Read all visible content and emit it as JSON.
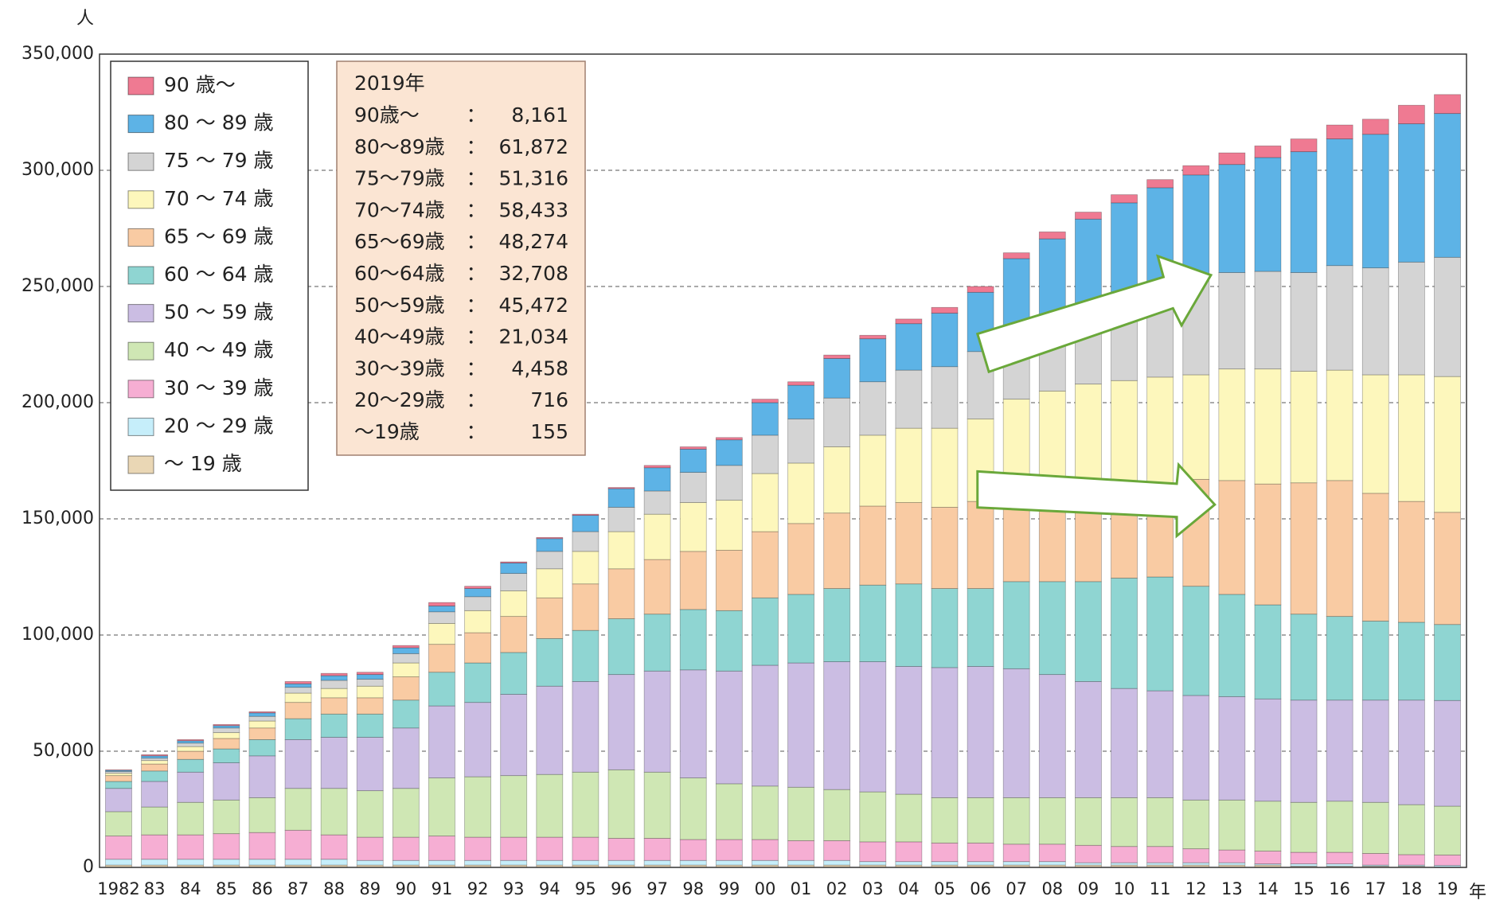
{
  "chart_data": {
    "type": "stacked_bar",
    "y_unit": "人",
    "x_unit": "年",
    "categories": [
      "1982",
      "83",
      "84",
      "85",
      "86",
      "87",
      "88",
      "89",
      "90",
      "91",
      "92",
      "93",
      "94",
      "95",
      "96",
      "97",
      "98",
      "99",
      "00",
      "01",
      "02",
      "03",
      "04",
      "05",
      "06",
      "07",
      "08",
      "09",
      "10",
      "11",
      "12",
      "13",
      "14",
      "15",
      "16",
      "17",
      "18",
      "19"
    ],
    "ylim": [
      0,
      350000
    ],
    "yticks": [
      0,
      {
        "value": 50000,
        "label": "50,000"
      },
      {
        "value": 100000,
        "label": "100,000"
      },
      {
        "value": 150000,
        "label": "150,000"
      },
      {
        "value": 200000,
        "label": "200,000"
      },
      {
        "value": 250000,
        "label": "250,000"
      },
      {
        "value": 300000,
        "label": "300,000"
      },
      {
        "value": 350000,
        "label": "350,000"
      }
    ],
    "grid": true,
    "series": [
      {
        "name": "～ 19 歳",
        "color": "#ead7b5",
        "values": [
          1000,
          1000,
          1000,
          1000,
          1000,
          1000,
          1000,
          1000,
          1000,
          1000,
          1000,
          1000,
          1000,
          1000,
          1000,
          1000,
          1000,
          1000,
          1000,
          1000,
          1000,
          1000,
          1000,
          1000,
          1000,
          1000,
          1000,
          1000,
          1000,
          1000,
          1000,
          1000,
          1000,
          500,
          500,
          500,
          500,
          155
        ]
      },
      {
        "name": "20 ～ 29 歳",
        "color": "#c6eefa",
        "values": [
          2500,
          2500,
          2500,
          2500,
          2500,
          2500,
          2500,
          2000,
          2000,
          2000,
          2000,
          2000,
          2000,
          2000,
          2000,
          2000,
          2000,
          2000,
          2000,
          2000,
          2000,
          1500,
          1500,
          1500,
          1500,
          1500,
          1500,
          1000,
          1000,
          1000,
          1000,
          1000,
          500,
          1000,
          1000,
          500,
          500,
          716
        ]
      },
      {
        "name": "30 ～ 39 歳",
        "color": "#f6aed3",
        "values": [
          10000,
          10500,
          10500,
          11000,
          11500,
          12500,
          10500,
          10000,
          10000,
          10500,
          10000,
          10000,
          10000,
          10000,
          9500,
          9500,
          9000,
          9000,
          9000,
          8500,
          8500,
          8500,
          8500,
          8000,
          8000,
          7500,
          7500,
          7500,
          7000,
          7000,
          6000,
          5500,
          5500,
          5000,
          5000,
          5000,
          4500,
          4458
        ]
      },
      {
        "name": "40 ～ 49 歳",
        "color": "#cfe7b4",
        "values": [
          10500,
          12000,
          14000,
          14500,
          15000,
          18000,
          20000,
          20000,
          21000,
          25000,
          26000,
          26500,
          27000,
          28000,
          29500,
          28500,
          26500,
          24000,
          23000,
          23000,
          22000,
          21500,
          20500,
          19500,
          19500,
          20000,
          20000,
          20500,
          21000,
          21000,
          21000,
          21500,
          21500,
          21500,
          22000,
          22000,
          21500,
          21034
        ]
      },
      {
        "name": "50 ～ 59 歳",
        "color": "#cbbde3",
        "values": [
          10000,
          11000,
          13000,
          16000,
          18000,
          21000,
          22000,
          23000,
          26000,
          31000,
          32000,
          35000,
          38000,
          39000,
          41000,
          43500,
          46500,
          48500,
          52000,
          53500,
          55000,
          56000,
          55000,
          56000,
          56500,
          55500,
          53000,
          50000,
          47000,
          46000,
          45000,
          44500,
          44000,
          44000,
          43500,
          44000,
          45000,
          45472
        ]
      },
      {
        "name": "60 ～ 64 歳",
        "color": "#8fd5d2",
        "values": [
          3000,
          4500,
          5500,
          6000,
          7000,
          9000,
          10000,
          10000,
          12000,
          14500,
          17000,
          18000,
          20500,
          22000,
          24000,
          24500,
          26000,
          26000,
          29000,
          29500,
          31500,
          33000,
          35500,
          34000,
          33500,
          37500,
          40000,
          43000,
          47500,
          49000,
          47000,
          44000,
          40500,
          37000,
          36000,
          34000,
          33500,
          32708
        ]
      },
      {
        "name": "65 ～ 69 歳",
        "color": "#f9cba3",
        "values": [
          2500,
          3000,
          3500,
          4500,
          5000,
          7000,
          7000,
          7000,
          10000,
          12000,
          13000,
          15500,
          17500,
          20000,
          21500,
          23500,
          25000,
          26000,
          28500,
          30500,
          32500,
          34000,
          35000,
          35000,
          37500,
          37000,
          36000,
          35000,
          34500,
          35000,
          46000,
          49000,
          52000,
          56500,
          58500,
          55000,
          52000,
          48274
        ]
      },
      {
        "name": "70 ～ 74 歳",
        "color": "#fdf7bc",
        "values": [
          1000,
          1500,
          2000,
          2500,
          3000,
          4000,
          4000,
          5000,
          6000,
          9000,
          9500,
          11000,
          12500,
          14000,
          16000,
          19500,
          21000,
          21500,
          25000,
          26000,
          28500,
          30500,
          32000,
          34000,
          35500,
          41500,
          46000,
          50000,
          50500,
          51000,
          45000,
          48000,
          49500,
          48000,
          47500,
          51000,
          54500,
          58433
        ]
      },
      {
        "name": "75 ～ 79 歳",
        "color": "#d4d4d4",
        "values": [
          800,
          1000,
          1500,
          2000,
          2000,
          2500,
          3500,
          3000,
          4000,
          5000,
          6000,
          7500,
          7500,
          8500,
          10500,
          10000,
          13000,
          15000,
          16500,
          19000,
          21000,
          23000,
          25000,
          26500,
          29000,
          20500,
          22000,
          24000,
          29500,
          35000,
          43000,
          41500,
          42000,
          42500,
          45000,
          46000,
          48500,
          51316
        ]
      },
      {
        "name": "80 ～ 89 歳",
        "color": "#5db3e6",
        "values": [
          500,
          1000,
          1000,
          1000,
          1500,
          1500,
          2000,
          2000,
          2500,
          2500,
          3500,
          4500,
          5500,
          7000,
          8000,
          10000,
          10000,
          11000,
          14000,
          14500,
          17000,
          18500,
          20000,
          23000,
          25500,
          40000,
          43500,
          47000,
          47000,
          46500,
          43000,
          46500,
          49000,
          52000,
          54500,
          57500,
          59500,
          61872
        ]
      },
      {
        "name": "90 歳～",
        "color": "#ef7a92",
        "values": [
          200,
          500,
          500,
          500,
          500,
          1000,
          1000,
          1000,
          1000,
          1500,
          1000,
          500,
          500,
          500,
          500,
          1000,
          1000,
          1000,
          1500,
          1500,
          1500,
          1500,
          2000,
          2500,
          2500,
          2500,
          3000,
          3000,
          3500,
          3500,
          4000,
          5000,
          5000,
          5500,
          6000,
          6500,
          8000,
          8161
        ]
      }
    ],
    "annotation": {
      "title": "2019年",
      "separator": "：",
      "rows": [
        {
          "label": "90歳～",
          "text": "8,161"
        },
        {
          "label": "80～89歳",
          "text": "61,872"
        },
        {
          "label": "75～79歳",
          "text": "51,316"
        },
        {
          "label": "70～74歳",
          "text": "58,433"
        },
        {
          "label": "65～69歳",
          "text": "48,274"
        },
        {
          "label": "60～64歳",
          "text": "32,708"
        },
        {
          "label": "50～59歳",
          "text": "45,472"
        },
        {
          "label": "40～49歳",
          "text": "21,034"
        },
        {
          "label": "30～39歳",
          "text": "4,458"
        },
        {
          "label": "20～29歳",
          "text": "716"
        },
        {
          "label": "～19歳",
          "text": "155"
        }
      ]
    }
  }
}
